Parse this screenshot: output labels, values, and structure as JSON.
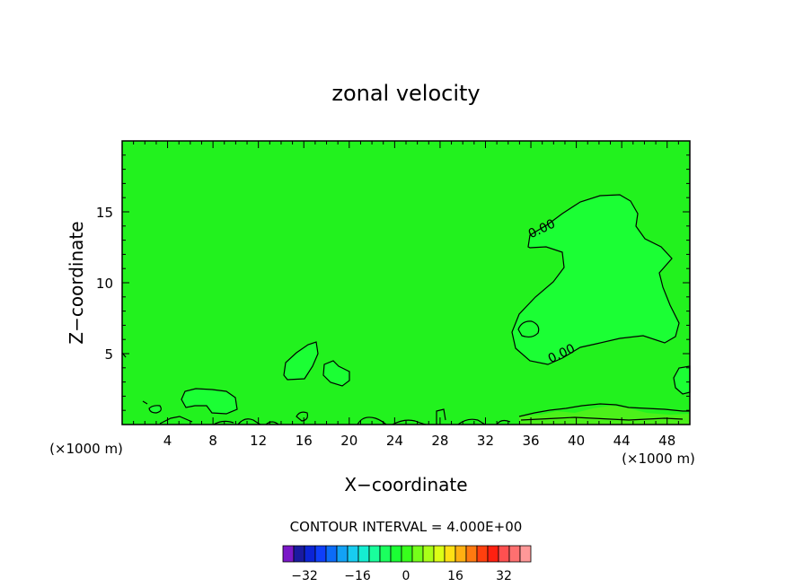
{
  "chart_data": {
    "type": "heatmap",
    "title": "zonal velocity",
    "xlabel": "X−coordinate",
    "ylabel": "Z−coordinate",
    "x_unit_left": "(×1000 m)",
    "x_unit_right": "(×1000 m)",
    "xlim": [
      0,
      50
    ],
    "ylim": [
      0,
      20
    ],
    "x_ticks": [
      4,
      8,
      12,
      16,
      20,
      24,
      28,
      32,
      36,
      40,
      44,
      48
    ],
    "y_ticks": [
      5,
      10,
      15
    ],
    "contour_interval_text": "CONTOUR INTERVAL = 4.000E+00",
    "contour_labels": [
      "0.00",
      "0.00"
    ],
    "background_color": "#22f21e",
    "contour_fill_color": "#1bff34",
    "colorbar": {
      "colors": [
        "#7a18c8",
        "#1a1aa0",
        "#0c24d6",
        "#0f3ffa",
        "#0c6cf8",
        "#13a2f5",
        "#18ccf0",
        "#15eed2",
        "#19fe9c",
        "#1bff5e",
        "#1bff34",
        "#38ff1c",
        "#76ff1a",
        "#aaff18",
        "#dcff16",
        "#ffe014",
        "#ffb012",
        "#ff7a10",
        "#ff400e",
        "#ff2010",
        "#ff5050",
        "#ff7070",
        "#ff9898"
      ],
      "tick_labels": [
        "−32",
        "−16",
        "0",
        "16",
        "32"
      ]
    }
  }
}
